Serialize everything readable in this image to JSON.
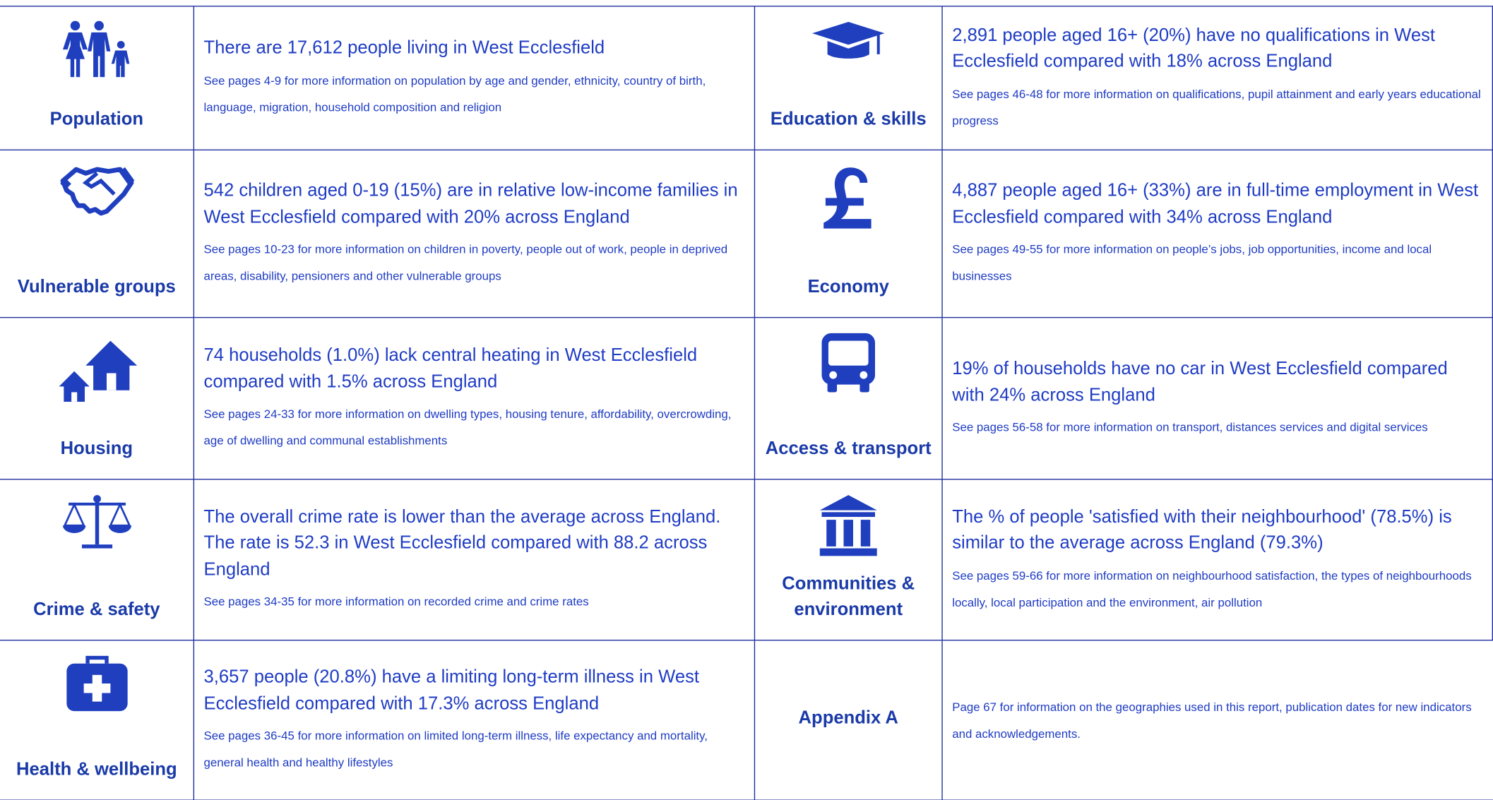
{
  "sections": [
    {
      "label": "Population",
      "headline": "There are 17,612 people living in West Ecclesfield",
      "detail": "See pages 4-9 for more information on population by age and gender, ethnicity, country of birth, language, migration, household composition and religion"
    },
    {
      "label": "Education & skills",
      "headline": "2,891 people aged 16+ (20%) have no qualifications in West Ecclesfield compared with 18% across England",
      "detail": "See pages 46-48 for more information on qualifications, pupil attainment and early years educational progress"
    },
    {
      "label": "Vulnerable groups",
      "headline": "542 children aged 0-19 (15%) are in relative low-income families in West Ecclesfield compared with 20% across England",
      "detail": "See pages 10-23 for more information on children in poverty, people out of work, people in deprived areas, disability, pensioners and other vulnerable groups"
    },
    {
      "label": "Economy",
      "headline": "4,887 people aged 16+ (33%) are in full-time employment in West Ecclesfield compared with 34% across England",
      "detail": "See pages 49-55 for more information on people’s jobs, job opportunities, income and local businesses"
    },
    {
      "label": "Housing",
      "headline": "74 households (1.0%) lack central heating in West Ecclesfield compared with 1.5% across England",
      "detail": "See pages 24-33 for more information on dwelling types, housing tenure, affordability, overcrowding, age of dwelling and communal establishments"
    },
    {
      "label": "Access & transport",
      "headline": "19% of households have no car in West Ecclesfield compared with 24% across England",
      "detail": "See pages 56-58 for more information on transport, distances services and digital services"
    },
    {
      "label": "Crime & safety",
      "headline": "The overall crime rate is lower than the average across England. The rate is 52.3 in West Ecclesfield compared with 88.2 across England",
      "detail": "See pages 34-35 for more information on recorded crime and crime rates"
    },
    {
      "label": "Communities & environment",
      "headline": "The % of people 'satisfied with their neighbourhood' (78.5%) is similar to the average across England (79.3%)",
      "detail": "See pages 59-66 for more information on neighbourhood satisfaction, the types of neighbourhoods locally, local participation and the environment, air pollution"
    },
    {
      "label": "Health & wellbeing",
      "headline": "3,657 people (20.8%) have a limiting long-term illness in West Ecclesfield compared with 17.3% across England",
      "detail": "See pages 36-45 for more information on limited long-term illness, life expectancy and mortality, general health and healthy lifestyles"
    },
    {
      "label": "Appendix A",
      "detail": "Page 67 for information on the geographies used in this report, publication dates for new indicators and acknowledgements."
    }
  ]
}
